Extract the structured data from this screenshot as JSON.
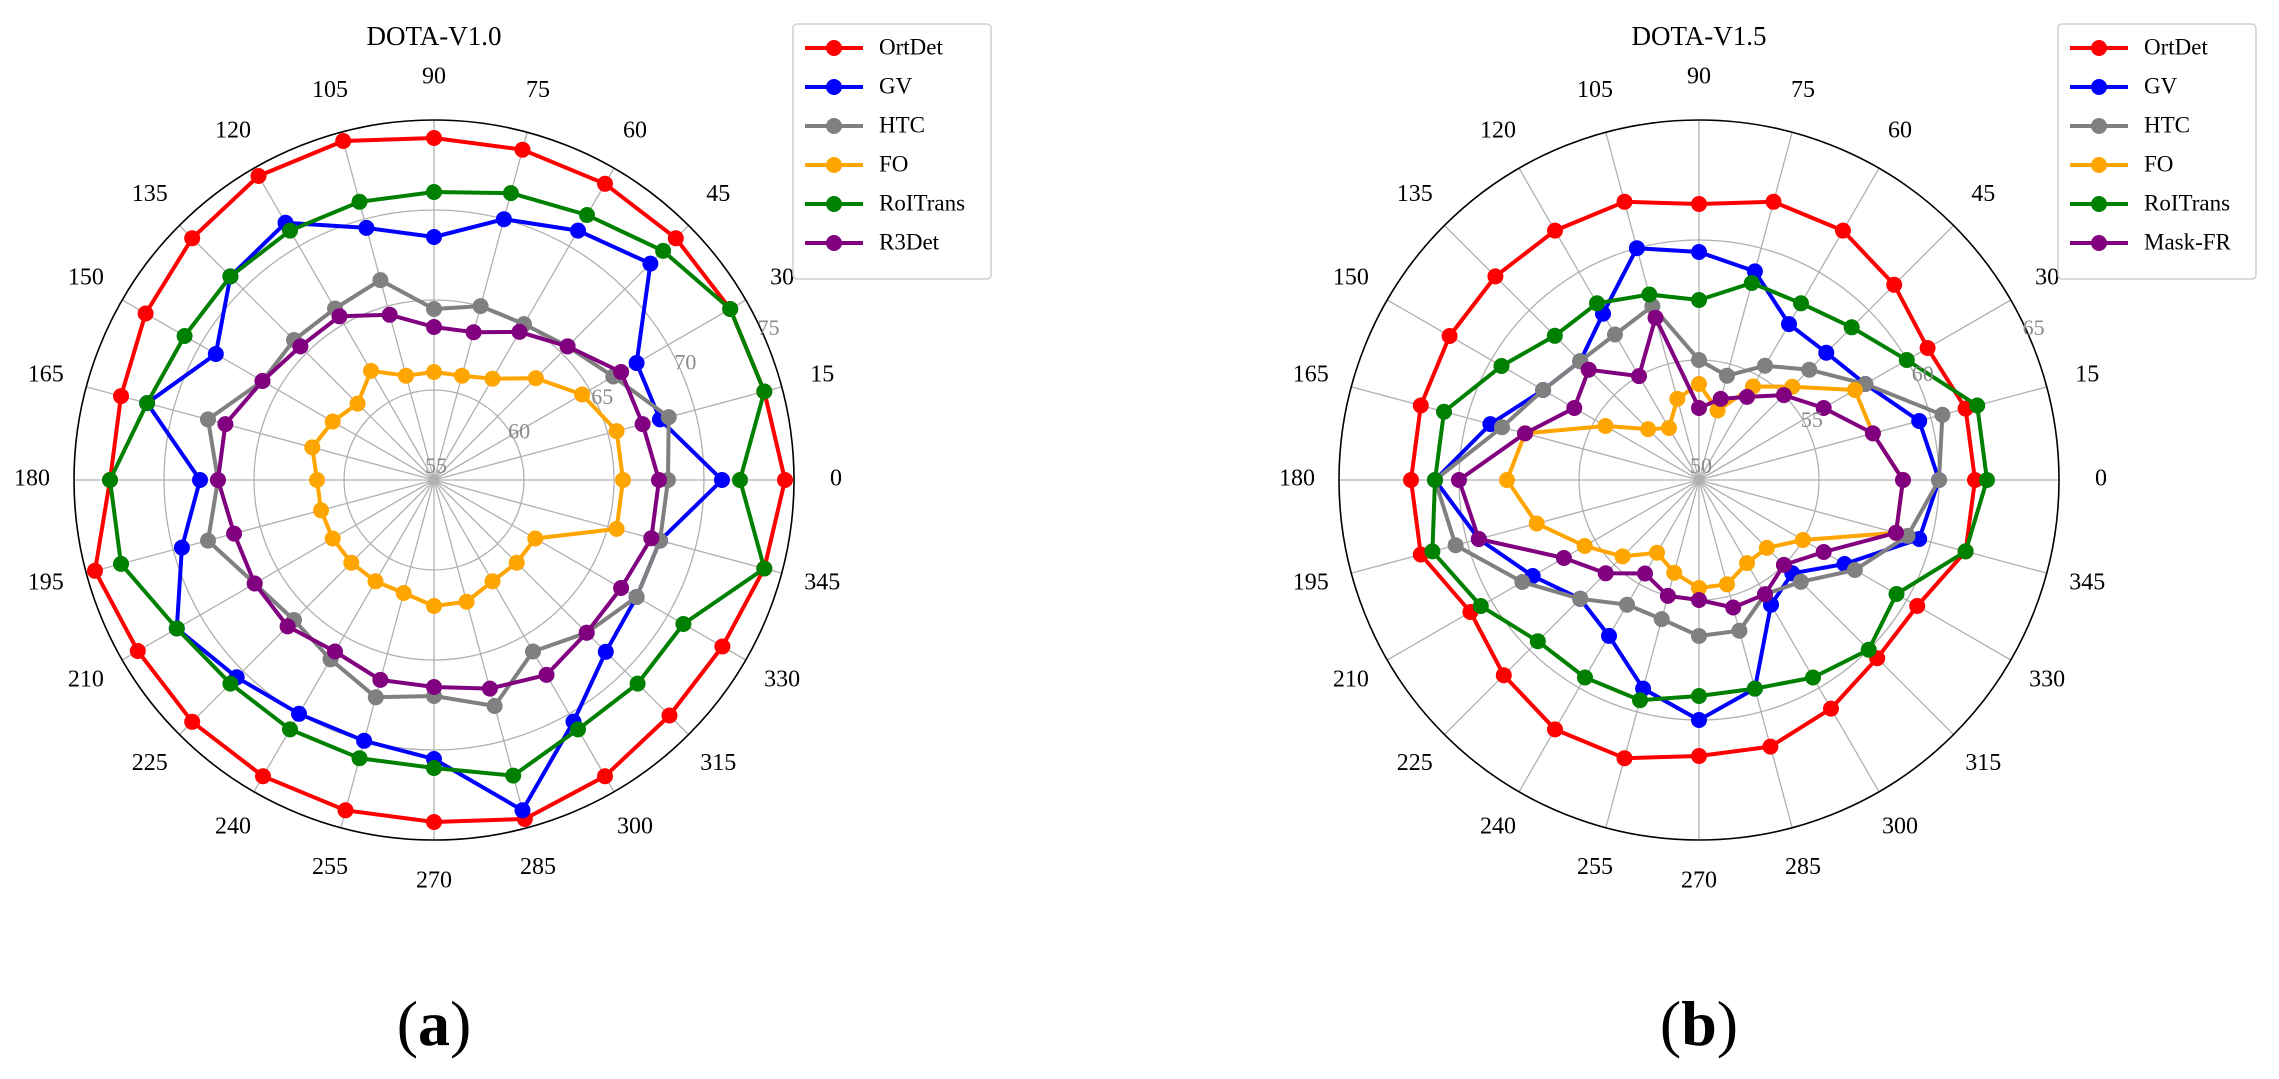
{
  "chart_data": [
    {
      "type": "radar",
      "title": "DOTA-V1.0",
      "subfigure_label": [
        "(",
        "a",
        ")"
      ],
      "angles": [
        0,
        15,
        30,
        45,
        60,
        75,
        90,
        105,
        120,
        135,
        150,
        165,
        180,
        195,
        210,
        225,
        240,
        255,
        270,
        285,
        300,
        315,
        330,
        345
      ],
      "radial_range": [
        55,
        75
      ],
      "radial_ticks": [
        55,
        60,
        65,
        70,
        75
      ],
      "grid": true,
      "legend_position": "top-right",
      "series": [
        {
          "name": "OrtDet",
          "color": "#ff0000",
          "values": [
            74.5,
            74.0,
            74.0,
            74.0,
            74.0,
            74.0,
            74.0,
            74.5,
            74.5,
            74.0,
            73.5,
            73.0,
            73.0,
            74.5,
            74.0,
            74.0,
            74.0,
            74.0,
            74.0,
            74.5,
            74.0,
            73.5,
            73.5,
            74.0
          ]
        },
        {
          "name": "GV",
          "color": "#0000ff",
          "values": [
            71.0,
            68.0,
            68.0,
            72.0,
            71.0,
            70.0,
            68.5,
            69.5,
            71.5,
            71.0,
            69.0,
            71.5,
            68.0,
            69.5,
            71.5,
            70.5,
            70.0,
            70.0,
            70.5,
            74.0,
            70.5,
            68.5,
            68.0,
            68.0
          ]
        },
        {
          "name": "HTC",
          "color": "#808080",
          "values": [
            68.0,
            68.5,
            66.5,
            65.5,
            65.0,
            65.0,
            64.5,
            66.5,
            66.0,
            66.0,
            66.0,
            68.0,
            67.0,
            68.0,
            66.5,
            66.0,
            66.5,
            67.5,
            67.0,
            68.0,
            66.0,
            67.0,
            68.0,
            68.0
          ]
        },
        {
          "name": "FO",
          "color": "#ffa500",
          "values": [
            65.5,
            65.5,
            64.5,
            63.0,
            61.5,
            61.0,
            61.0,
            61.0,
            62.0,
            61.0,
            61.5,
            62.0,
            61.5,
            61.5,
            61.5,
            61.5,
            61.5,
            61.5,
            62.0,
            62.0,
            61.5,
            61.5,
            61.5,
            65.5
          ]
        },
        {
          "name": "RoITrans",
          "color": "#008000",
          "values": [
            72.0,
            74.0,
            74.0,
            73.0,
            72.0,
            71.5,
            71.0,
            71.0,
            71.0,
            71.0,
            71.0,
            71.5,
            73.0,
            73.0,
            71.5,
            71.0,
            71.0,
            71.0,
            71.0,
            72.0,
            71.0,
            71.0,
            71.0,
            74.0
          ]
        },
        {
          "name": "R3Det",
          "color": "#800080",
          "values": [
            67.5,
            67.0,
            67.0,
            65.5,
            64.5,
            63.5,
            63.5,
            64.5,
            65.5,
            65.5,
            66.0,
            67.0,
            67.0,
            66.5,
            66.5,
            66.5,
            66.0,
            66.5,
            66.5,
            67.0,
            67.5,
            67.0,
            67.0,
            67.5
          ]
        }
      ]
    },
    {
      "type": "radar",
      "title": "DOTA-V1.5",
      "subfigure_label": [
        "(",
        "b",
        ")"
      ],
      "angles": [
        0,
        15,
        30,
        45,
        60,
        75,
        90,
        105,
        120,
        135,
        150,
        165,
        180,
        195,
        210,
        225,
        240,
        255,
        270,
        285,
        300,
        315,
        330,
        345
      ],
      "radial_range": [
        50,
        65
      ],
      "radial_ticks": [
        50,
        55,
        60,
        65
      ],
      "grid": true,
      "legend_position": "top-right",
      "series": [
        {
          "name": "OrtDet",
          "color": "#ff0000",
          "values": [
            61.5,
            61.5,
            61.0,
            61.5,
            62.0,
            62.0,
            61.5,
            62.0,
            62.0,
            62.0,
            62.0,
            62.0,
            62.0,
            62.0,
            61.0,
            61.5,
            62.0,
            62.0,
            61.5,
            61.5,
            61.0,
            60.5,
            60.5,
            61.5
          ]
        },
        {
          "name": "GV",
          "color": "#0000ff",
          "values": [
            60.0,
            59.5,
            58.0,
            57.5,
            57.5,
            59.0,
            59.5,
            60.0,
            58.0,
            57.0,
            57.5,
            59.0,
            61.0,
            59.5,
            58.0,
            57.0,
            57.5,
            59.0,
            60.0,
            59.0,
            56.0,
            55.5,
            57.0,
            59.5
          ]
        },
        {
          "name": "HTC",
          "color": "#808080",
          "values": [
            60.0,
            60.5,
            58.0,
            56.5,
            55.5,
            54.5,
            55.0,
            57.5,
            57.0,
            57.0,
            57.5,
            58.5,
            61.0,
            60.5,
            58.5,
            57.0,
            56.0,
            56.0,
            56.5,
            56.5,
            55.5,
            56.0,
            57.5,
            59.0
          ]
        },
        {
          "name": "FO",
          "color": "#ffa500",
          "values": [
            58.5,
            57.5,
            57.5,
            55.5,
            54.5,
            53.0,
            54.0,
            53.5,
            52.5,
            53.0,
            54.5,
            57.5,
            58.0,
            57.0,
            55.5,
            54.5,
            53.5,
            54.0,
            54.5,
            54.5,
            54.0,
            54.0,
            55.0,
            58.5
          ]
        },
        {
          "name": "RoITrans",
          "color": "#008000",
          "values": [
            62.0,
            62.0,
            60.0,
            59.0,
            58.5,
            58.5,
            57.5,
            58.0,
            58.5,
            58.5,
            59.5,
            61.0,
            61.0,
            61.5,
            60.5,
            59.5,
            59.5,
            59.5,
            59.0,
            59.0,
            59.5,
            60.0,
            59.5,
            61.5
          ]
        },
        {
          "name": "Mask-FR",
          "color": "#800080",
          "values": [
            58.5,
            57.5,
            56.0,
            55.0,
            54.0,
            53.5,
            53.0,
            57.0,
            55.0,
            56.5,
            56.0,
            57.5,
            60.0,
            59.5,
            56.5,
            55.5,
            54.5,
            55.0,
            55.0,
            55.5,
            55.5,
            55.0,
            56.0,
            58.5
          ]
        }
      ]
    }
  ]
}
